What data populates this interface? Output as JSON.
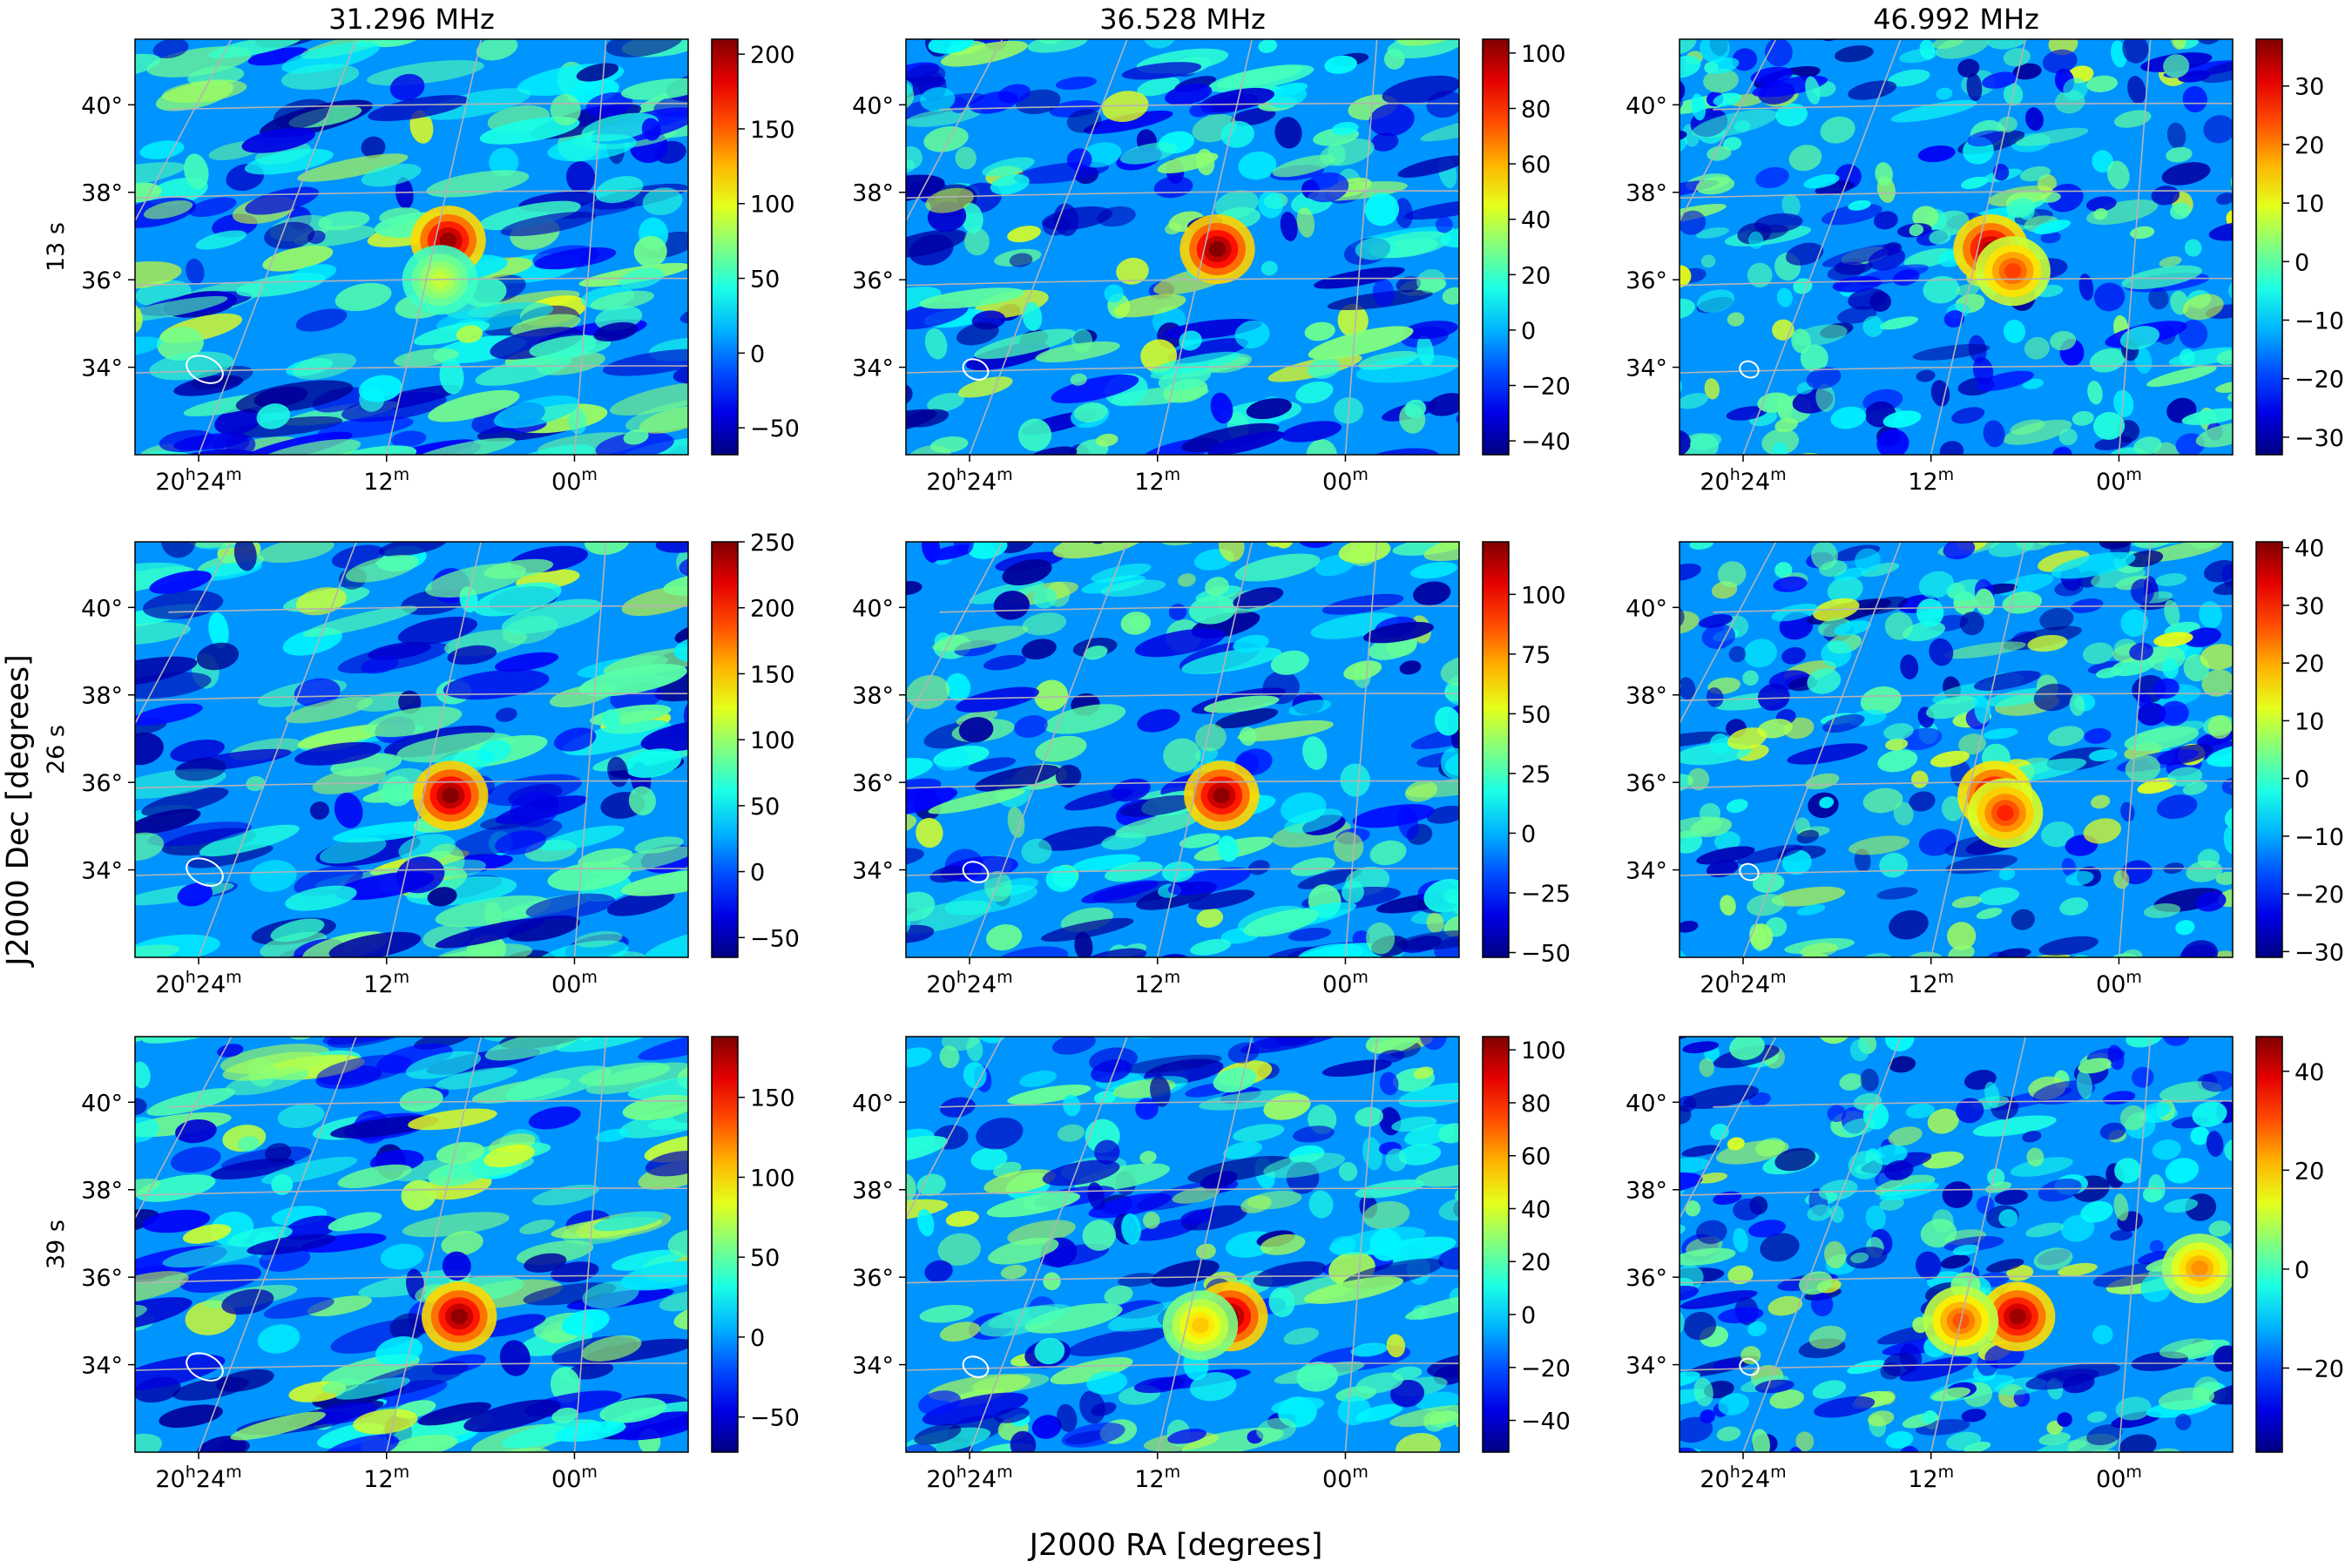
{
  "figure": {
    "xlabel": "J2000 RA [degrees]",
    "ylabel": "J2000 Dec [degrees]",
    "colormap": "jet",
    "grid_color": "#b4b4b4",
    "beam_color": "#ffffff"
  },
  "chart_data": {
    "type": "heatmap",
    "columns": [
      "31.296 MHz",
      "36.528 MHz",
      "46.992 MHz"
    ],
    "rows": [
      "13 s",
      "26 s",
      "39 s"
    ],
    "x_ticks": [
      {
        "base": "20",
        "sup": "h",
        "base2": "24",
        "sup2": "m"
      },
      {
        "base": "12",
        "sup": "m"
      },
      {
        "base": "00",
        "sup": "m"
      }
    ],
    "y_ticks": [
      "40°",
      "38°",
      "36°",
      "34°"
    ],
    "y_tick_values": [
      40,
      38,
      36,
      34
    ],
    "dec_range": [
      32,
      41.5
    ],
    "panels": [
      {
        "row": "13 s",
        "column": "31.296 MHz",
        "vmin": -68,
        "vmax": 210,
        "colorbar_ticks": [
          200,
          150,
          100,
          50,
          0,
          -50
        ],
        "sources": [
          {
            "ra_hm": "20h11m",
            "dec": 36.9,
            "peak": 205
          },
          {
            "ra_hm": "20h11m",
            "dec": 36.0,
            "peak": 90
          }
        ],
        "noise": 0.22,
        "stripes": 0.75
      },
      {
        "row": "13 s",
        "column": "36.528 MHz",
        "vmin": -45,
        "vmax": 105,
        "colorbar_ticks": [
          100,
          80,
          60,
          40,
          20,
          0,
          -20,
          -40
        ],
        "sources": [
          {
            "ra_hm": "20h11m",
            "dec": 36.7,
            "peak": 105
          }
        ],
        "noise": 0.3,
        "stripes": 0.4
      },
      {
        "row": "13 s",
        "column": "46.992 MHz",
        "vmin": -33,
        "vmax": 38,
        "colorbar_ticks": [
          30,
          20,
          10,
          0,
          -10,
          -20,
          -30
        ],
        "sources": [
          {
            "ra_hm": "20h11m",
            "dec": 36.7,
            "peak": 36
          },
          {
            "ra_hm": "20h09m",
            "dec": 36.2,
            "peak": 25
          }
        ],
        "noise": 0.45,
        "stripes": 0.25
      },
      {
        "row": "26 s",
        "column": "31.296 MHz",
        "vmin": -65,
        "vmax": 250,
        "colorbar_ticks": [
          250,
          200,
          150,
          100,
          50,
          0,
          -50
        ],
        "sources": [
          {
            "ra_hm": "20h10m",
            "dec": 35.7,
            "peak": 250
          }
        ],
        "noise": 0.2,
        "stripes": 0.75
      },
      {
        "row": "26 s",
        "column": "36.528 MHz",
        "vmin": -52,
        "vmax": 122,
        "colorbar_ticks": [
          100,
          75,
          50,
          25,
          0,
          -25,
          -50
        ],
        "sources": [
          {
            "ra_hm": "20h10m",
            "dec": 35.7,
            "peak": 120
          }
        ],
        "noise": 0.3,
        "stripes": 0.4
      },
      {
        "row": "26 s",
        "column": "46.992 MHz",
        "vmin": -31,
        "vmax": 41,
        "colorbar_ticks": [
          40,
          30,
          20,
          10,
          0,
          -10,
          -20,
          -30
        ],
        "sources": [
          {
            "ra_hm": "20h10m",
            "dec": 35.7,
            "peak": 38
          },
          {
            "ra_hm": "20h09m",
            "dec": 35.3,
            "peak": 30
          }
        ],
        "noise": 0.45,
        "stripes": 0.25
      },
      {
        "row": "39 s",
        "column": "31.296 MHz",
        "vmin": -72,
        "vmax": 188,
        "colorbar_ticks": [
          150,
          100,
          50,
          0,
          -50
        ],
        "sources": [
          {
            "ra_hm": "20h09m",
            "dec": 35.1,
            "peak": 185
          }
        ],
        "noise": 0.22,
        "stripes": 0.75
      },
      {
        "row": "39 s",
        "column": "36.528 MHz",
        "vmin": -52,
        "vmax": 105,
        "colorbar_ticks": [
          100,
          80,
          60,
          40,
          20,
          0,
          -20,
          -40
        ],
        "sources": [
          {
            "ra_hm": "20h09m",
            "dec": 35.1,
            "peak": 105
          },
          {
            "ra_hm": "20h11m",
            "dec": 34.9,
            "peak": 55
          }
        ],
        "noise": 0.3,
        "stripes": 0.4
      },
      {
        "row": "39 s",
        "column": "46.992 MHz",
        "vmin": -37,
        "vmax": 47,
        "colorbar_ticks": [
          40,
          20,
          0,
          -20
        ],
        "sources": [
          {
            "ra_hm": "20h08m",
            "dec": 35.1,
            "peak": 45
          },
          {
            "ra_hm": "20h12m",
            "dec": 35.0,
            "peak": 30
          },
          {
            "ra_hm": "19h55m",
            "dec": 36.2,
            "peak": 25
          }
        ],
        "noise": 0.45,
        "stripes": 0.25
      }
    ]
  }
}
